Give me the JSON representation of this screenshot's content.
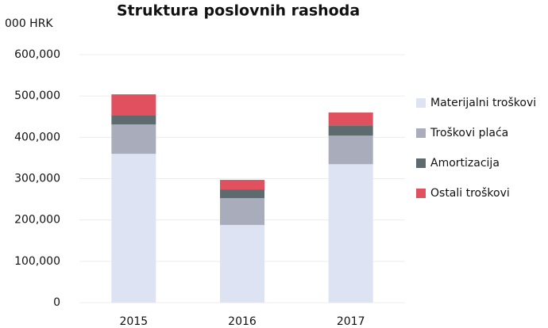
{
  "chart_data": {
    "type": "stacked_bar",
    "title": "Struktura poslovnih rashoda",
    "unit_label": "000 HRK",
    "categories": [
      "2015",
      "2016",
      "2017"
    ],
    "series": [
      {
        "name": "Materijalni troškovi",
        "color": "#dde3f3",
        "values": [
          360000,
          188000,
          335000
        ]
      },
      {
        "name": "Troškovi plaća",
        "color": "#a9adbb",
        "values": [
          71000,
          65000,
          69000
        ]
      },
      {
        "name": "Amortizacija",
        "color": "#5e6b6e",
        "values": [
          23000,
          21000,
          25000
        ]
      },
      {
        "name": "Ostali troškovi",
        "color": "#e0505e",
        "values": [
          50000,
          23000,
          31000
        ]
      }
    ],
    "ylim": [
      0,
      600000
    ],
    "yticks": [
      0,
      {
        "value": 100000,
        "label": "100,000"
      },
      {
        "value": 200000,
        "label": "200,000"
      },
      {
        "value": 300000,
        "label": "300,000"
      },
      {
        "value": 400000,
        "label": "400,000"
      },
      {
        "value": 500000,
        "label": "500,000"
      },
      {
        "value": 600000,
        "label": "600,000"
      }
    ],
    "grid": true,
    "legend": "right"
  }
}
